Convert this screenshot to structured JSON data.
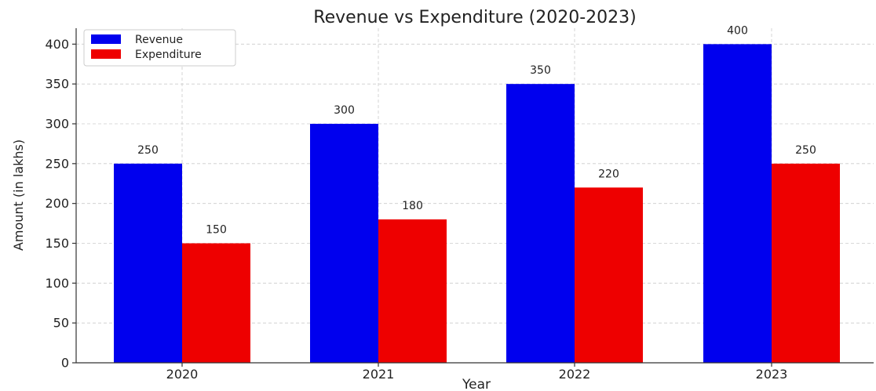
{
  "chart_data": {
    "type": "bar",
    "title": "Revenue vs Expenditure (2020-2023)",
    "xlabel": "Year",
    "ylabel": "Amount (in lakhs)",
    "categories": [
      "2020",
      "2021",
      "2022",
      "2023"
    ],
    "series": [
      {
        "name": "Revenue",
        "values": [
          250,
          300,
          350,
          400
        ],
        "color": "#0000ee"
      },
      {
        "name": "Expenditure",
        "values": [
          150,
          180,
          220,
          250
        ],
        "color": "#ee0000"
      }
    ],
    "ylim": [
      0,
      420
    ],
    "yticks": [
      0,
      50,
      100,
      150,
      200,
      250,
      300,
      350,
      400
    ],
    "grid": true,
    "legend_position": "top-left"
  }
}
